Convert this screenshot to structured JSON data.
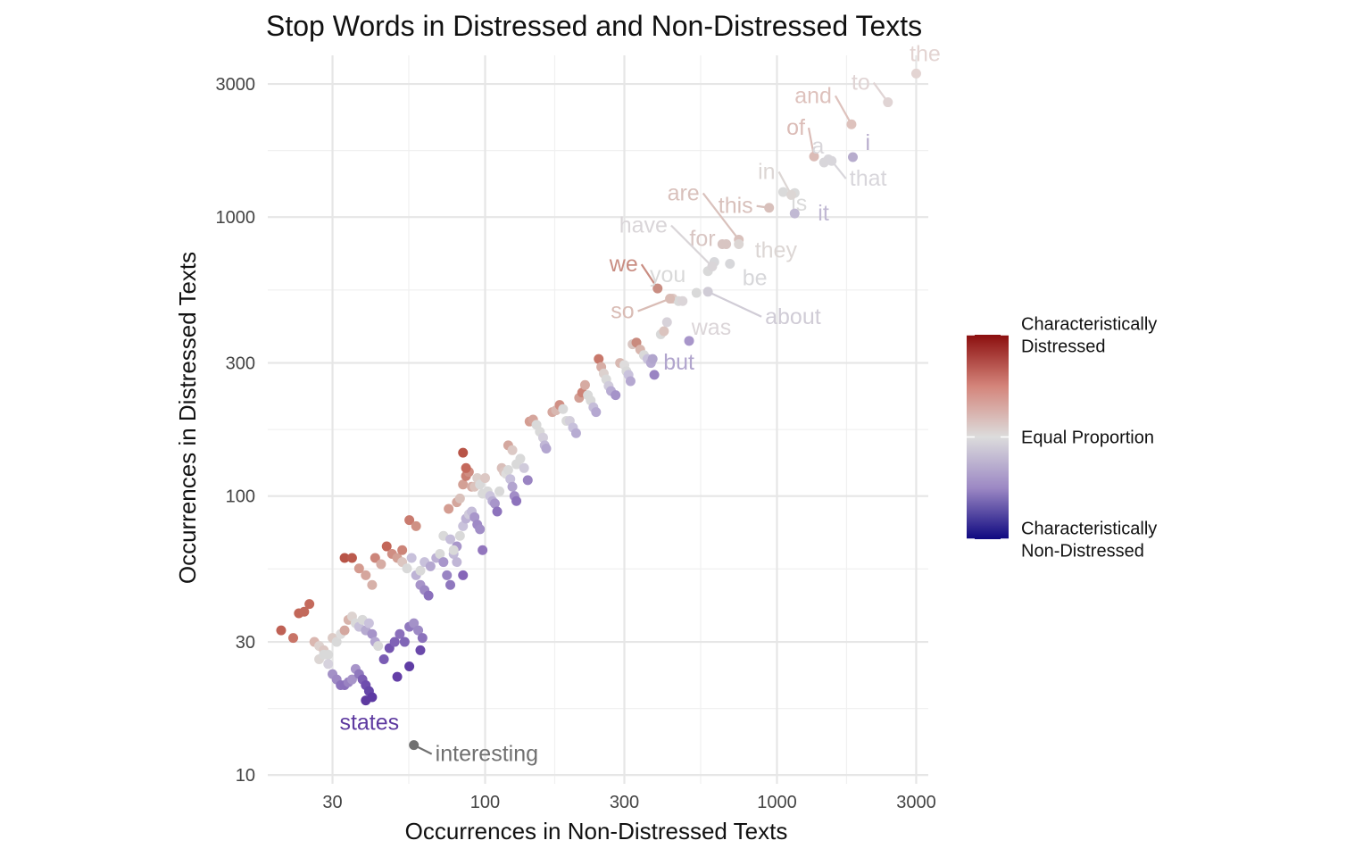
{
  "chart_data": {
    "type": "scatter",
    "title": "Stop Words in Distressed and Non-Distressed Texts",
    "xlabel": "Occurrences in Non-Distressed Texts",
    "ylabel": "Occurrences in Distressed Texts",
    "x_scale": "log10",
    "y_scale": "log10",
    "xlim": [
      18,
      3300
    ],
    "ylim": [
      9.3,
      3800
    ],
    "x_ticks": [
      {
        "value": 30,
        "label": "30"
      },
      {
        "value": 100,
        "label": "100"
      },
      {
        "value": 300,
        "label": "300"
      },
      {
        "value": 1000,
        "label": "1000"
      },
      {
        "value": 3000,
        "label": "3000"
      }
    ],
    "y_ticks": [
      {
        "value": 10,
        "label": "10"
      },
      {
        "value": 30,
        "label": "30"
      },
      {
        "value": 100,
        "label": "100"
      },
      {
        "value": 300,
        "label": "300"
      },
      {
        "value": 1000,
        "label": "1000"
      },
      {
        "value": 3000,
        "label": "3000"
      }
    ],
    "grid": true,
    "legend": {
      "placement": "right",
      "gradient_colors": [
        "#8b0e0e",
        "#d4847a",
        "#dcdcdc",
        "#9c88c4",
        "#0e0880"
      ],
      "labels": [
        {
          "lines": [
            "Characteristically",
            "Distressed"
          ],
          "position": 1.0
        },
        {
          "lines": [
            "Equal Proportion"
          ],
          "position": 0.5
        },
        {
          "lines": [
            "Characteristically",
            "Non-Distressed"
          ],
          "position": 0.0
        }
      ]
    },
    "labeled_points": [
      {
        "word": "the",
        "x": 3000,
        "y": 3270,
        "color": "#e3d4d2"
      },
      {
        "word": "to",
        "x": 2400,
        "y": 2580,
        "color": "#e0d4d4"
      },
      {
        "word": "and",
        "x": 1800,
        "y": 2150,
        "color": "#dec2bd"
      },
      {
        "word": "of",
        "x": 1340,
        "y": 1650,
        "color": "#dbbcb7"
      },
      {
        "word": "a",
        "x": 1450,
        "y": 1570,
        "color": "#d8d6da"
      },
      {
        "word": "i",
        "x": 1820,
        "y": 1640,
        "color": "#b7accd"
      },
      {
        "word": "that",
        "x": 1540,
        "y": 1590,
        "color": "#d8d6db"
      },
      {
        "word": "is",
        "x": 1150,
        "y": 1220,
        "color": "#dadada"
      },
      {
        "word": "in",
        "x": 1120,
        "y": 1200,
        "color": "#dcd6d4"
      },
      {
        "word": "it",
        "x": 1150,
        "y": 1030,
        "color": "#c1b9d3"
      },
      {
        "word": "this",
        "x": 940,
        "y": 1080,
        "color": "#d8c0bb"
      },
      {
        "word": "are",
        "x": 740,
        "y": 830,
        "color": "#d9c1bc"
      },
      {
        "word": "they",
        "x": 740,
        "y": 800,
        "color": "#dcd6d4"
      },
      {
        "word": "for",
        "x": 670,
        "y": 800,
        "color": "#d8c5c2"
      },
      {
        "word": "have",
        "x": 600,
        "y": 665,
        "color": "#d9d5d8"
      },
      {
        "word": "be",
        "x": 690,
        "y": 680,
        "color": "#d7d7da"
      },
      {
        "word": "we",
        "x": 390,
        "y": 555,
        "color": "#c98d82"
      },
      {
        "word": "you",
        "x": 530,
        "y": 535,
        "color": "#d9d9d9"
      },
      {
        "word": "about",
        "x": 580,
        "y": 540,
        "color": "#d0ccd6"
      },
      {
        "word": "so",
        "x": 430,
        "y": 510,
        "color": "#d9bcb5"
      },
      {
        "word": "was",
        "x": 475,
        "y": 500,
        "color": "#dbd5d8"
      },
      {
        "word": "but",
        "x": 375,
        "y": 310,
        "color": "#b1a5cd"
      },
      {
        "word": "states",
        "x": 39,
        "y": 18.5,
        "color": "#5e3aa0"
      },
      {
        "word": "interesting",
        "x": 57,
        "y": 12.8,
        "color": "#707070"
      }
    ],
    "points": [
      [
        20,
        33,
        "#bf6155"
      ],
      [
        22,
        31,
        "#c87467"
      ],
      [
        23,
        38,
        "#c26759"
      ],
      [
        24,
        38.5,
        "#c26a5c"
      ],
      [
        25,
        41,
        "#c46a5c"
      ],
      [
        26,
        30,
        "#dab7b0"
      ],
      [
        27,
        29,
        "#ddd2cf"
      ],
      [
        28,
        28,
        "#dcc8c4"
      ],
      [
        29,
        27,
        "#d9d9d9"
      ],
      [
        30,
        31,
        "#dccbc6"
      ],
      [
        31,
        30,
        "#d9d9d9"
      ],
      [
        32,
        32,
        "#dedcdc"
      ],
      [
        33,
        33,
        "#d4a79f"
      ],
      [
        34,
        36,
        "#d7b3ab"
      ],
      [
        35,
        37,
        "#ddd3d0"
      ],
      [
        36,
        35,
        "#d9d9d9"
      ],
      [
        37,
        34,
        "#c8c1da"
      ],
      [
        38,
        36,
        "#d9d9d9"
      ],
      [
        39,
        33,
        "#b6aad0"
      ],
      [
        40,
        35,
        "#cac2dc"
      ],
      [
        41,
        32,
        "#a694c9"
      ],
      [
        42,
        30,
        "#b4a6d1"
      ],
      [
        43,
        29,
        "#d9d9d9"
      ],
      [
        27,
        26,
        "#dcd6d4"
      ],
      [
        28,
        27,
        "#d9d9d9"
      ],
      [
        29,
        25,
        "#d6d2dd"
      ],
      [
        30,
        23,
        "#a391c6"
      ],
      [
        31,
        22,
        "#9e89c4"
      ],
      [
        32,
        21,
        "#8d74bc"
      ],
      [
        33,
        21,
        "#8b70bb"
      ],
      [
        34,
        21.5,
        "#9a83c2"
      ],
      [
        35,
        22,
        "#a794c9"
      ],
      [
        36,
        24,
        "#a895ca"
      ],
      [
        37,
        23,
        "#8f78bd"
      ],
      [
        38,
        22,
        "#7c5eb3"
      ],
      [
        39,
        21,
        "#6f4dae"
      ],
      [
        40,
        20,
        "#6546a8"
      ],
      [
        41,
        19,
        "#5d3aa3"
      ],
      [
        50,
        22.5,
        "#643fa7"
      ],
      [
        55,
        24.5,
        "#5f3ca4"
      ],
      [
        60,
        28,
        "#6a49aa"
      ],
      [
        45,
        26,
        "#7a5cb4"
      ],
      [
        47,
        28.5,
        "#7555b0"
      ],
      [
        49,
        30,
        "#8063b6"
      ],
      [
        51,
        32,
        "#8a6fbb"
      ],
      [
        53,
        30,
        "#8066b6"
      ],
      [
        55,
        34,
        "#9079be"
      ],
      [
        57,
        35,
        "#a492c8"
      ],
      [
        59,
        33,
        "#9d8ac5"
      ],
      [
        61,
        31,
        "#8b72bb"
      ],
      [
        33,
        60,
        "#b85447"
      ],
      [
        35,
        60,
        "#bb5a4d"
      ],
      [
        37,
        55,
        "#d49b90"
      ],
      [
        39,
        52,
        "#d5a69d"
      ],
      [
        41,
        48,
        "#d7b1a9"
      ],
      [
        42,
        60,
        "#cc857a"
      ],
      [
        44,
        57,
        "#d6aca4"
      ],
      [
        46,
        66,
        "#c36658"
      ],
      [
        48,
        62,
        "#cf8e83"
      ],
      [
        50,
        60,
        "#d3a095"
      ],
      [
        52,
        58,
        "#dcc6c1"
      ],
      [
        54,
        55,
        "#d9d9d9"
      ],
      [
        56,
        60,
        "#c8c1db"
      ],
      [
        58,
        52,
        "#bdb2d5"
      ],
      [
        60,
        48,
        "#a794c9"
      ],
      [
        62,
        46,
        "#9d88c4"
      ],
      [
        64,
        44,
        "#8a6fbb"
      ],
      [
        52,
        64,
        "#cc8478"
      ],
      [
        55,
        82,
        "#c97b6f"
      ],
      [
        58,
        78,
        "#cf9184"
      ],
      [
        60,
        54,
        "#d9d9d9"
      ],
      [
        62,
        58,
        "#c8c1db"
      ],
      [
        65,
        56,
        "#b5a8d0"
      ],
      [
        68,
        60,
        "#bcb0d4"
      ],
      [
        70,
        62,
        "#d9d9d9"
      ],
      [
        72,
        58,
        "#a896cb"
      ],
      [
        74,
        52,
        "#9984c3"
      ],
      [
        76,
        48,
        "#8f78be"
      ],
      [
        78,
        62,
        "#c3bad8"
      ],
      [
        80,
        66,
        "#a896ca"
      ],
      [
        82,
        72,
        "#d9d9d9"
      ],
      [
        84,
        78,
        "#c9c2db"
      ],
      [
        86,
        83,
        "#bdb2d5"
      ],
      [
        88,
        86,
        "#cfcadb"
      ],
      [
        90,
        88,
        "#c5bdd9"
      ],
      [
        92,
        84,
        "#a896ca"
      ],
      [
        94,
        79,
        "#9f8ac6"
      ],
      [
        96,
        76,
        "#a18ec7"
      ],
      [
        98,
        64,
        "#9276bd"
      ],
      [
        72,
        72,
        "#d9d9d9"
      ],
      [
        76,
        70,
        "#c6beda"
      ],
      [
        78,
        64,
        "#d9d9d9"
      ],
      [
        80,
        58,
        "#c0b6d6"
      ],
      [
        84,
        52,
        "#8666b8"
      ],
      [
        75,
        90,
        "#d49d92"
      ],
      [
        80,
        95,
        "#d4a69c"
      ],
      [
        82,
        98,
        "#d9c1bb"
      ],
      [
        84,
        110,
        "#d3a095"
      ],
      [
        86,
        118,
        "#c97e72"
      ],
      [
        88,
        122,
        "#cf8d82"
      ],
      [
        90,
        108,
        "#d6ada5"
      ],
      [
        92,
        108,
        "#dbc3bd"
      ],
      [
        94,
        116,
        "#dccfcb"
      ],
      [
        96,
        110,
        "#d9d9d9"
      ],
      [
        98,
        102,
        "#d9d9d9"
      ],
      [
        100,
        116,
        "#dcc8c4"
      ],
      [
        102,
        104,
        "#d9d9d9"
      ],
      [
        104,
        100,
        "#cbc4dc"
      ],
      [
        106,
        96,
        "#b9aed3"
      ],
      [
        108,
        94,
        "#a896ca"
      ],
      [
        110,
        88,
        "#8d73bc"
      ],
      [
        112,
        104,
        "#d9d9d9"
      ],
      [
        114,
        126,
        "#d9bfba"
      ],
      [
        116,
        122,
        "#dac5c1"
      ],
      [
        118,
        120,
        "#dedcdc"
      ],
      [
        120,
        124,
        "#d9d9d9"
      ],
      [
        122,
        115,
        "#c8c1dc"
      ],
      [
        124,
        108,
        "#b2a4cf"
      ],
      [
        126,
        100,
        "#a28dc7"
      ],
      [
        128,
        96,
        "#8d73bc"
      ],
      [
        120,
        152,
        "#d4a79e"
      ],
      [
        124,
        146,
        "#dcc9c5"
      ],
      [
        128,
        130,
        "#d9d9d9"
      ],
      [
        132,
        136,
        "#d9d9d9"
      ],
      [
        136,
        126,
        "#d0cbdb"
      ],
      [
        140,
        114,
        "#9a84c2"
      ],
      [
        84,
        143,
        "#b85447"
      ],
      [
        86,
        126,
        "#c4695c"
      ],
      [
        142,
        185,
        "#d49d92"
      ],
      [
        146,
        188,
        "#d5a59c"
      ],
      [
        150,
        180,
        "#d9d9d9"
      ],
      [
        154,
        170,
        "#d9d9d9"
      ],
      [
        158,
        162,
        "#d3cedb"
      ],
      [
        160,
        152,
        "#c1b7d6"
      ],
      [
        162,
        148,
        "#b3a6d0"
      ],
      [
        170,
        200,
        "#d5a79e"
      ],
      [
        175,
        203,
        "#d8b8b1"
      ],
      [
        180,
        212,
        "#d08f84"
      ],
      [
        185,
        205,
        "#d9d9d9"
      ],
      [
        190,
        186,
        "#d9d9d9"
      ],
      [
        195,
        186,
        "#d3cedb"
      ],
      [
        200,
        176,
        "#c7c0db"
      ],
      [
        205,
        168,
        "#b7acd2"
      ],
      [
        210,
        225,
        "#d3a096"
      ],
      [
        215,
        235,
        "#cc8377"
      ],
      [
        220,
        250,
        "#d6aba2"
      ],
      [
        225,
        230,
        "#d9d9d9"
      ],
      [
        230,
        220,
        "#d9d9d9"
      ],
      [
        235,
        208,
        "#c5bdd9"
      ],
      [
        240,
        200,
        "#b5a8d1"
      ],
      [
        245,
        310,
        "#c8786b"
      ],
      [
        250,
        290,
        "#d6ada5"
      ],
      [
        255,
        275,
        "#dcd1ce"
      ],
      [
        260,
        262,
        "#d9d9d9"
      ],
      [
        265,
        248,
        "#d0cbdb"
      ],
      [
        270,
        238,
        "#b8acd3"
      ],
      [
        280,
        230,
        "#a593c9"
      ],
      [
        290,
        300,
        "#d8b9b2"
      ],
      [
        300,
        295,
        "#dedcdc"
      ],
      [
        305,
        280,
        "#d9d9d9"
      ],
      [
        310,
        272,
        "#c9c2dc"
      ],
      [
        315,
        258,
        "#b5a8d1"
      ],
      [
        320,
        350,
        "#d9c6c2"
      ],
      [
        330,
        355,
        "#c98a7e"
      ],
      [
        340,
        335,
        "#d8b6ae"
      ],
      [
        350,
        320,
        "#d9d9d9"
      ],
      [
        360,
        310,
        "#c9c2dc"
      ],
      [
        370,
        300,
        "#b6aad1"
      ],
      [
        380,
        272,
        "#9a84c3"
      ],
      [
        400,
        380,
        "#d9d9d9"
      ],
      [
        410,
        390,
        "#dbc4bf"
      ],
      [
        420,
        420,
        "#d7d2d9"
      ],
      [
        440,
        510,
        "#dec9c4"
      ],
      [
        460,
        500,
        "#d9d9d9"
      ],
      [
        500,
        360,
        "#a896ca"
      ],
      [
        580,
        640,
        "#d9d9d9"
      ],
      [
        610,
        690,
        "#d7d7da"
      ],
      [
        650,
        800,
        "#d8c5c2"
      ],
      [
        1050,
        1230,
        "#dadada"
      ],
      [
        1500,
        1610,
        "#d8d6db"
      ]
    ]
  }
}
